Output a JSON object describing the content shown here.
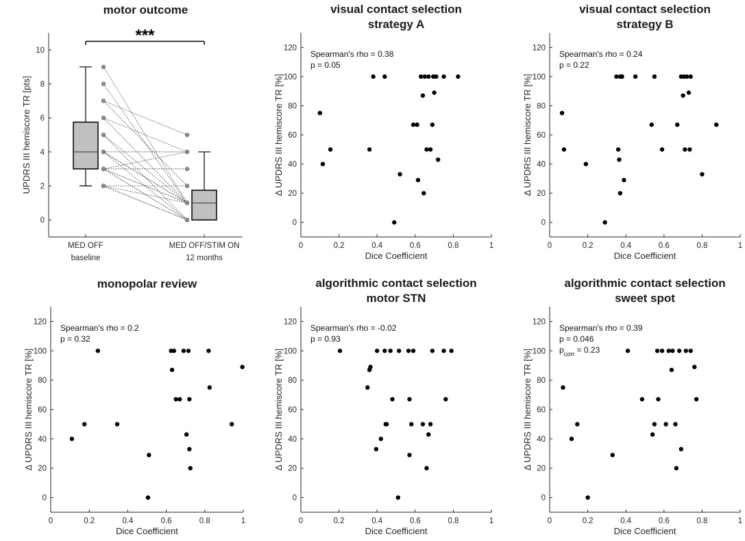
{
  "figure": {
    "background": "#ffffff",
    "axis_color": "#262626",
    "dot_color": "#000000"
  },
  "chart_data": [
    {
      "id": "motor",
      "type": "box-paired",
      "title": [
        "motor outcome"
      ],
      "ylabel": "UPDRS III hemiscore TR [pts]",
      "ylim": [
        -1,
        11
      ],
      "yticks": [
        0,
        2,
        4,
        6,
        8,
        10
      ],
      "categories": [
        {
          "label": "MED OFF",
          "sublabel": "baseline"
        },
        {
          "label": "MED OFF/STIM ON",
          "sublabel": "12 months"
        }
      ],
      "boxes": [
        {
          "whisker_low": 2,
          "q1": 3,
          "median": 4,
          "q3": 5.75,
          "whisker_high": 9
        },
        {
          "whisker_low": 0,
          "q1": 0,
          "median": 1,
          "q3": 1.75,
          "whisker_high": 4
        }
      ],
      "box_fill": "#c0c0c0",
      "pairs": [
        [
          9,
          1
        ],
        [
          8,
          1
        ],
        [
          7,
          5
        ],
        [
          7,
          2
        ],
        [
          6,
          4
        ],
        [
          6,
          1
        ],
        [
          5,
          1
        ],
        [
          5,
          0
        ],
        [
          4,
          4
        ],
        [
          4,
          1
        ],
        [
          4,
          1
        ],
        [
          4,
          1
        ],
        [
          4,
          0
        ],
        [
          3,
          4
        ],
        [
          3,
          3
        ],
        [
          3,
          1
        ],
        [
          3,
          1
        ],
        [
          3,
          0
        ],
        [
          3,
          0
        ],
        [
          2,
          2
        ],
        [
          2,
          1
        ],
        [
          2,
          0
        ],
        [
          2,
          0
        ],
        [
          2,
          0
        ]
      ],
      "pair_marker_color": "#8c8c8c",
      "significance": {
        "label": "***",
        "y": 10.5
      }
    },
    {
      "id": "visA",
      "type": "scatter",
      "title": [
        "visual contact selection",
        "strategy A"
      ],
      "xlabel": "Dice Coefficient",
      "ylabel": "Δ UPDRS III hemiscore TR [%]",
      "xlim": [
        0,
        1
      ],
      "ylim": [
        -10,
        130
      ],
      "xticks": [
        0,
        0.2,
        0.4,
        0.6,
        0.8,
        1
      ],
      "yticks": [
        0,
        20,
        40,
        60,
        80,
        100,
        120
      ],
      "annotation": [
        "Spearman's rho = 0.38",
        "p = 0.05"
      ],
      "x": [
        0.1,
        0.115,
        0.155,
        0.36,
        0.38,
        0.44,
        0.49,
        0.52,
        0.59,
        0.61,
        0.615,
        0.63,
        0.64,
        0.645,
        0.65,
        0.66,
        0.67,
        0.68,
        0.69,
        0.695,
        0.7,
        0.71,
        0.72,
        0.75,
        0.825
      ],
      "y": [
        75,
        40,
        50,
        50,
        100,
        100,
        0,
        33,
        67,
        67,
        29,
        100,
        87,
        20,
        100,
        50,
        100,
        50,
        67,
        100,
        89,
        100,
        43,
        100,
        100
      ]
    },
    {
      "id": "visB",
      "type": "scatter",
      "title": [
        "visual contact selection",
        "strategy B"
      ],
      "xlabel": "Dice Coefficient",
      "ylabel": "Δ UPDRS III hemiscore TR [%]",
      "xlim": [
        0,
        1
      ],
      "ylim": [
        -10,
        130
      ],
      "xticks": [
        0,
        0.2,
        0.4,
        0.6,
        0.8,
        1
      ],
      "yticks": [
        0,
        20,
        40,
        60,
        80,
        100,
        120
      ],
      "annotation": [
        "Spearman's rho = 0.24",
        "p = 0.22"
      ],
      "x": [
        0.065,
        0.075,
        0.19,
        0.29,
        0.35,
        0.36,
        0.365,
        0.37,
        0.37,
        0.375,
        0.38,
        0.39,
        0.45,
        0.535,
        0.55,
        0.59,
        0.67,
        0.69,
        0.7,
        0.705,
        0.71,
        0.72,
        0.73,
        0.735,
        0.74,
        0.8,
        0.875
      ],
      "y": [
        75,
        50,
        40,
        0,
        100,
        50,
        43,
        100,
        20,
        100,
        100,
        29,
        100,
        67,
        100,
        50,
        67,
        100,
        87,
        100,
        50,
        100,
        89,
        50,
        100,
        33,
        67
      ]
    },
    {
      "id": "mono",
      "type": "scatter",
      "title": [
        "monopolar review"
      ],
      "xlabel": "Dice Coefficient",
      "ylabel": "Δ UPDRS III hemiscore TR [%]",
      "xlim": [
        0,
        1
      ],
      "ylim": [
        -10,
        130
      ],
      "xticks": [
        0,
        0.2,
        0.4,
        0.6,
        0.8,
        1
      ],
      "yticks": [
        0,
        20,
        40,
        60,
        80,
        100,
        120
      ],
      "annotation": [
        "Spearman's rho = 0.2",
        "p = 0.32"
      ],
      "x": [
        0.11,
        0.175,
        0.245,
        0.345,
        0.505,
        0.51,
        0.625,
        0.63,
        0.64,
        0.65,
        0.67,
        0.69,
        0.705,
        0.715,
        0.72,
        0.72,
        0.725,
        0.82,
        0.825,
        0.94,
        0.995
      ],
      "y": [
        40,
        50,
        100,
        50,
        0,
        29,
        100,
        87,
        100,
        67,
        67,
        100,
        43,
        100,
        67,
        33,
        20,
        100,
        75,
        50,
        89
      ]
    },
    {
      "id": "motorSTN",
      "type": "scatter",
      "title": [
        "algorithmic contact selection",
        "motor STN"
      ],
      "xlabel": "Dice Coefficient",
      "ylabel": "Δ UPDRS III hemiscore TR [%]",
      "xlim": [
        0,
        1
      ],
      "ylim": [
        -10,
        130
      ],
      "xticks": [
        0,
        0.2,
        0.4,
        0.6,
        0.8,
        1
      ],
      "yticks": [
        0,
        20,
        40,
        60,
        80,
        100,
        120
      ],
      "annotation": [
        "Spearman's rho = -0.02",
        "p = 0.93"
      ],
      "x": [
        0.205,
        0.35,
        0.36,
        0.365,
        0.395,
        0.4,
        0.42,
        0.44,
        0.445,
        0.45,
        0.47,
        0.48,
        0.51,
        0.515,
        0.565,
        0.57,
        0.57,
        0.58,
        0.59,
        0.64,
        0.66,
        0.67,
        0.68,
        0.69,
        0.75,
        0.76,
        0.79
      ],
      "y": [
        100,
        75,
        87,
        89,
        33,
        100,
        40,
        100,
        50,
        50,
        100,
        67,
        0,
        100,
        100,
        29,
        67,
        50,
        100,
        50,
        20,
        43,
        50,
        100,
        100,
        67,
        100
      ]
    },
    {
      "id": "sweet",
      "type": "scatter",
      "title": [
        "algorithmic contact selection",
        "sweet spot"
      ],
      "xlabel": "Dice Coefficient",
      "ylabel": "Δ UPDRS III hemiscore TR [%]",
      "xlim": [
        0,
        1
      ],
      "ylim": [
        -10,
        130
      ],
      "xticks": [
        0,
        0.2,
        0.4,
        0.6,
        0.8,
        1
      ],
      "yticks": [
        0,
        20,
        40,
        60,
        80,
        100,
        120
      ],
      "annotation": [
        "Spearman's rho = 0.39",
        "p = 0.046",
        "p_corr = 0.23"
      ],
      "x": [
        0.07,
        0.115,
        0.145,
        0.2,
        0.33,
        0.41,
        0.485,
        0.54,
        0.55,
        0.565,
        0.57,
        0.59,
        0.61,
        0.625,
        0.64,
        0.645,
        0.66,
        0.665,
        0.68,
        0.69,
        0.715,
        0.74,
        0.76,
        0.77
      ],
      "y": [
        75,
        40,
        50,
        0,
        29,
        100,
        67,
        43,
        50,
        100,
        67,
        100,
        50,
        100,
        87,
        100,
        50,
        20,
        100,
        33,
        100,
        100,
        89,
        67
      ]
    }
  ]
}
